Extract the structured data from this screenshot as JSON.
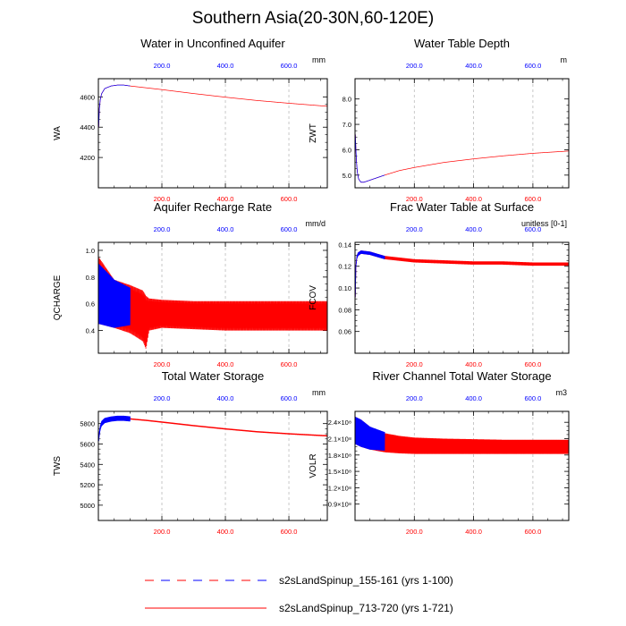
{
  "title": "Southern Asia(20-30N,60-120E)",
  "colors": {
    "red_series": "#ff0000",
    "blue_series": "#0000ff",
    "axis": "#000000",
    "grid": "#bbbbbb"
  },
  "legend": [
    {
      "label": "s2sLandSpinup_155-161 (yrs 1-100)",
      "style": "dashed-red-blue"
    },
    {
      "label": "s2sLandSpinup_713-720 (yrs 1-721)",
      "style": "solid-red"
    }
  ],
  "chart_data": [
    {
      "type": "line",
      "title": "Water in Unconfined Aquifer",
      "ylabel": "WA",
      "units": "mm",
      "xlim": [
        0,
        721
      ],
      "ylim": [
        4000,
        4720
      ],
      "yticks": [
        {
          "v": 4200,
          "label": "4200"
        },
        {
          "v": 4400,
          "label": "4400"
        },
        {
          "v": 4600,
          "label": "4600"
        }
      ],
      "top_ticks": [
        "200.0",
        "400.0",
        "600.0"
      ],
      "bottom_ticks": [
        "200.0",
        "400.0",
        "600.0"
      ],
      "series": [
        {
          "name": "s2sLandSpinup_713-720 (yrs 1-721)",
          "color": "red",
          "x": [
            1,
            3,
            6,
            10,
            20,
            40,
            60,
            80,
            100,
            150,
            200,
            300,
            400,
            500,
            600,
            721
          ],
          "y": [
            4400,
            4520,
            4580,
            4620,
            4655,
            4672,
            4678,
            4678,
            4672,
            4660,
            4648,
            4622,
            4598,
            4576,
            4558,
            4538
          ]
        },
        {
          "name": "s2sLandSpinup_155-161 (yrs 1-100)",
          "color": "blue",
          "x": [
            1,
            3,
            6,
            10,
            20,
            40,
            60,
            80,
            100
          ],
          "y": [
            4400,
            4520,
            4580,
            4620,
            4655,
            4672,
            4678,
            4678,
            4672
          ]
        }
      ]
    },
    {
      "type": "line",
      "title": "Water Table Depth",
      "ylabel": "ZWT",
      "units": "m",
      "xlim": [
        0,
        721
      ],
      "ylim": [
        4.5,
        8.8
      ],
      "yticks": [
        {
          "v": 5,
          "label": "5.0"
        },
        {
          "v": 6,
          "label": "6.0"
        },
        {
          "v": 7,
          "label": "7.0"
        },
        {
          "v": 8,
          "label": "8.0"
        }
      ],
      "top_ticks": [
        "200.0",
        "400.0",
        "600.0"
      ],
      "bottom_ticks": [
        "200.0",
        "400.0",
        "600.0"
      ],
      "series": [
        {
          "name": "s2sLandSpinup_713-720 (yrs 1-721)",
          "color": "red",
          "x": [
            1,
            3,
            5,
            8,
            12,
            20,
            30,
            50,
            80,
            100,
            150,
            200,
            300,
            400,
            500,
            600,
            721
          ],
          "y": [
            6.6,
            6.0,
            5.5,
            5.1,
            4.85,
            4.72,
            4.72,
            4.8,
            4.92,
            5.0,
            5.18,
            5.3,
            5.5,
            5.64,
            5.76,
            5.86,
            5.95
          ]
        },
        {
          "name": "s2sLandSpinup_155-161 (yrs 1-100)",
          "color": "blue",
          "x": [
            1,
            3,
            5,
            8,
            12,
            20,
            30,
            50,
            80,
            100
          ],
          "y": [
            6.6,
            6.0,
            5.5,
            5.1,
            4.85,
            4.72,
            4.72,
            4.8,
            4.92,
            5.0
          ]
        }
      ]
    },
    {
      "type": "line",
      "title": "Aquifer Recharge Rate",
      "ylabel": "QCHARGE",
      "units": "mm/d",
      "xlim": [
        0,
        721
      ],
      "ylim": [
        0.23,
        1.06
      ],
      "yticks": [
        {
          "v": 0.4,
          "label": "0.4"
        },
        {
          "v": 0.6,
          "label": "0.6"
        },
        {
          "v": 0.8,
          "label": "0.8"
        },
        {
          "v": 1.0,
          "label": "1.0"
        }
      ],
      "top_ticks": [
        "200.0",
        "400.0",
        "600.0"
      ],
      "bottom_ticks": [
        "200.0",
        "400.0",
        "600.0"
      ],
      "series": [
        {
          "name": "s2sLandSpinup_713-720 (yrs 1-721)",
          "color": "red",
          "x": [
            1,
            50,
            100,
            140,
            150,
            160,
            200,
            300,
            400,
            500,
            600,
            721
          ],
          "lo": [
            0.45,
            0.42,
            0.38,
            0.32,
            0.26,
            0.4,
            0.42,
            0.41,
            0.4,
            0.4,
            0.4,
            0.4
          ],
          "hi": [
            0.95,
            0.78,
            0.74,
            0.7,
            0.66,
            0.64,
            0.63,
            0.62,
            0.62,
            0.62,
            0.62,
            0.62
          ]
        },
        {
          "name": "s2sLandSpinup_155-161 (yrs 1-100)",
          "color": "blue",
          "x": [
            1,
            50,
            100
          ],
          "lo": [
            0.45,
            0.42,
            0.44
          ],
          "hi": [
            0.9,
            0.78,
            0.72
          ]
        }
      ]
    },
    {
      "type": "line",
      "title": "Frac Water Table at Surface",
      "ylabel": "FCOV",
      "units": "unitless [0-1]",
      "xlim": [
        0,
        721
      ],
      "ylim": [
        0.04,
        0.142
      ],
      "yticks": [
        {
          "v": 0.06,
          "label": "0.06"
        },
        {
          "v": 0.08,
          "label": "0.08"
        },
        {
          "v": 0.1,
          "label": "0.10"
        },
        {
          "v": 0.12,
          "label": "0.12"
        },
        {
          "v": 0.14,
          "label": "0.14"
        }
      ],
      "top_ticks": [
        "200.0",
        "400.0",
        "600.0"
      ],
      "bottom_ticks": [
        "200.0",
        "400.0",
        "600.0"
      ],
      "series": [
        {
          "name": "s2sLandSpinup_713-720 (yrs 1-721)",
          "color": "red",
          "x": [
            1,
            3,
            6,
            10,
            20,
            50,
            100,
            200,
            300,
            400,
            500,
            600,
            721
          ],
          "y": [
            0.09,
            0.12,
            0.128,
            0.131,
            0.133,
            0.132,
            0.128,
            0.125,
            0.124,
            0.123,
            0.123,
            0.122,
            0.122
          ],
          "amp": 0.0015
        },
        {
          "name": "s2sLandSpinup_155-161 (yrs 1-100)",
          "color": "blue",
          "x": [
            1,
            3,
            6,
            10,
            20,
            50,
            100
          ],
          "y": [
            0.09,
            0.12,
            0.128,
            0.131,
            0.133,
            0.132,
            0.128
          ],
          "amp": 0.0015
        }
      ]
    },
    {
      "type": "line",
      "title": "Total Water Storage",
      "ylabel": "TWS",
      "units": "mm",
      "xlim": [
        0,
        721
      ],
      "ylim": [
        4850,
        5920
      ],
      "yticks": [
        {
          "v": 5000,
          "label": "5000"
        },
        {
          "v": 5200,
          "label": "5200"
        },
        {
          "v": 5400,
          "label": "5400"
        },
        {
          "v": 5600,
          "label": "5600"
        },
        {
          "v": 5800,
          "label": "5800"
        }
      ],
      "top_ticks": [
        "200.0",
        "400.0",
        "600.0"
      ],
      "bottom_ticks": [
        "200.0",
        "400.0",
        "600.0"
      ],
      "series": [
        {
          "name": "s2sLandSpinup_713-720 (yrs 1-721)",
          "color": "red",
          "x": [
            1,
            3,
            6,
            10,
            20,
            40,
            60,
            80,
            100,
            150,
            200,
            300,
            400,
            500,
            600,
            721
          ],
          "y": [
            5640,
            5700,
            5760,
            5800,
            5830,
            5845,
            5852,
            5852,
            5846,
            5832,
            5815,
            5780,
            5748,
            5720,
            5700,
            5680
          ],
          "amp": 6
        },
        {
          "name": "s2sLandSpinup_155-161 (yrs 1-100)",
          "color": "blue",
          "x": [
            1,
            3,
            6,
            10,
            20,
            40,
            60,
            80,
            100
          ],
          "y": [
            5640,
            5700,
            5760,
            5800,
            5830,
            5845,
            5852,
            5852,
            5846
          ],
          "amp": 25
        }
      ]
    },
    {
      "type": "line",
      "title": "River Channel Total Water Storage",
      "ylabel": "VOLR",
      "units": "m3",
      "xlim": [
        0,
        721
      ],
      "ylim": [
        600000000,
        2600000000
      ],
      "yticks": [
        {
          "v": 900000000,
          "label": "0.9×10⁸"
        },
        {
          "v": 1200000000,
          "label": "1.2×10⁸"
        },
        {
          "v": 1500000000,
          "label": "1.5×10⁸"
        },
        {
          "v": 1800000000,
          "label": "1.8×10⁸"
        },
        {
          "v": 2100000000,
          "label": "2.1×10⁸"
        },
        {
          "v": 2400000000,
          "label": "2.4×10⁸"
        }
      ],
      "top_ticks": [
        "200.0",
        "400.0",
        "600.0"
      ],
      "bottom_ticks": [
        "200.0",
        "400.0",
        "600.0"
      ],
      "series": [
        {
          "name": "s2sLandSpinup_713-720 (yrs 1-721)",
          "color": "red",
          "x": [
            1,
            20,
            50,
            100,
            150,
            200,
            300,
            400,
            500,
            600,
            721
          ],
          "lo": [
            2000000000,
            1950000000,
            1900000000,
            1850000000,
            1830000000,
            1820000000,
            1820000000,
            1820000000,
            1820000000,
            1820000000,
            1820000000
          ],
          "hi": [
            2500000000,
            2450000000,
            2320000000,
            2200000000,
            2150000000,
            2120000000,
            2100000000,
            2090000000,
            2080000000,
            2080000000,
            2080000000
          ]
        },
        {
          "name": "s2sLandSpinup_155-161 (yrs 1-100)",
          "color": "blue",
          "x": [
            1,
            20,
            50,
            100
          ],
          "lo": [
            2000000000,
            1950000000,
            1900000000,
            1880000000
          ],
          "hi": [
            2500000000,
            2450000000,
            2320000000,
            2220000000
          ]
        }
      ]
    }
  ]
}
